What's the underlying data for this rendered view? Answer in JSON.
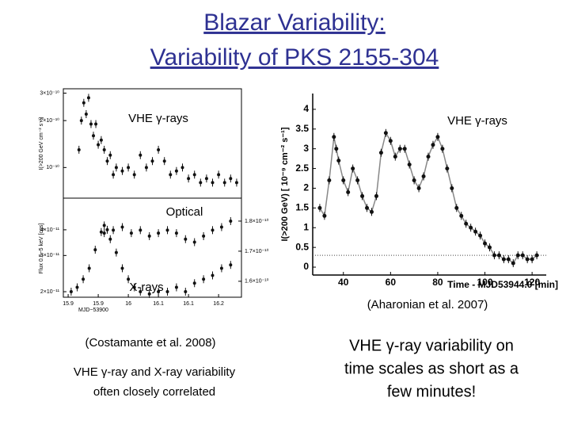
{
  "title_lines": [
    "Blazar Variability:",
    "Variability of PKS 2155-304"
  ],
  "chart_data": [
    {
      "type": "scatter",
      "ylog": true,
      "ylabel": "I(>200 GeV cm⁻² s⁻¹)",
      "xlim": [
        15.892,
        16.188
      ],
      "ylim": [
        6.36e-11,
        3.2e-10
      ],
      "yticks": [
        {
          "value": 3e-10,
          "label": "3×10⁻¹⁰"
        },
        {
          "value": 2e-10,
          "label": "2×10⁻¹⁰"
        },
        {
          "value": 1e-10,
          "label": "10⁻¹⁰"
        }
      ],
      "series": [
        {
          "name": "VHE γ-rays",
          "color": "#111111",
          "x": [
            15.918,
            15.922,
            15.926,
            15.93,
            15.934,
            15.938,
            15.942,
            15.946,
            15.95,
            15.955,
            15.96,
            15.965,
            15.97,
            15.975,
            15.98,
            15.99,
            16.0,
            16.01,
            16.02,
            16.03,
            16.04,
            16.05,
            16.06,
            16.07,
            16.08,
            16.09,
            16.1,
            16.11,
            16.12,
            16.13,
            16.14,
            16.15,
            16.16,
            16.17,
            16.18
          ],
          "values": [
            1.3e-10,
            2e-10,
            2.6e-10,
            2.2e-10,
            2.8e-10,
            1.9e-10,
            1.6e-10,
            1.9e-10,
            1.4e-10,
            1.5e-10,
            1.3e-10,
            1.1e-10,
            1.2e-10,
            9e-11,
            1e-10,
            9.5e-11,
            1e-10,
            9e-11,
            1.2e-10,
            1e-10,
            1.1e-10,
            1.3e-10,
            1.1e-10,
            9e-11,
            9.5e-11,
            1e-10,
            8.5e-11,
            9e-11,
            8e-11,
            8.5e-11,
            8e-11,
            9e-11,
            8e-11,
            8.5e-11,
            8e-11
          ]
        }
      ]
    },
    {
      "type": "scatter",
      "ylog": true,
      "ylabel": "Flux 0.5−5 keV [cgs]",
      "xlabel": "MJD−53900",
      "xlim": [
        15.892,
        16.188
      ],
      "xticks": [
        15.9,
        {
          "value": 15.95,
          "label": "15.9"
        },
        16,
        {
          "value": 16.05,
          "label": "16.1"
        },
        16.1,
        {
          "value": 16.15,
          "label": "16.2"
        }
      ],
      "ylim": [
        1.88e-11,
        5.6e-11
      ],
      "yticks": [
        {
          "value": 4e-11,
          "label": "4×10⁻¹¹"
        },
        {
          "value": 3e-11,
          "label": "3×10⁻¹¹"
        },
        {
          "value": 2e-11,
          "label": "2×10⁻¹¹"
        }
      ],
      "y2lim": [
        1.547e-10,
        1.871e-10
      ],
      "y2ticks": [
        {
          "value": 1.8e-10,
          "label": "1.8×10⁻¹⁰"
        },
        {
          "value": 1.7e-10,
          "label": "1.7×10⁻¹⁰"
        },
        {
          "value": 1.6e-10,
          "label": "1.6×10⁻¹⁰"
        }
      ],
      "series": [
        {
          "name": "Optical",
          "color": "#111111",
          "axis": "y2",
          "x": [
            15.96,
            15.975,
            15.99,
            16.005,
            16.02,
            16.035,
            16.05,
            16.065,
            16.08,
            16.095,
            16.11,
            16.125,
            16.14,
            16.155,
            16.17
          ],
          "values": [
            1.76e-10,
            1.77e-10,
            1.78e-10,
            1.76e-10,
            1.77e-10,
            1.75e-10,
            1.76e-10,
            1.77e-10,
            1.76e-10,
            1.74e-10,
            1.73e-10,
            1.75e-10,
            1.77e-10,
            1.78e-10,
            1.8e-10
          ]
        },
        {
          "name": "X-rays",
          "color": "#111111",
          "x": [
            15.905,
            15.915,
            15.925,
            15.935,
            15.945,
            15.955,
            15.96,
            15.965,
            15.97,
            15.98,
            15.99,
            16.0,
            16.01,
            16.02,
            16.035,
            16.05,
            16.065,
            16.08,
            16.095,
            16.11,
            16.125,
            16.14,
            16.155,
            16.17
          ],
          "values": [
            2e-11,
            2.1e-11,
            2.3e-11,
            2.6e-11,
            3.2e-11,
            3.9e-11,
            4.2e-11,
            4e-11,
            3.6e-11,
            3.1e-11,
            2.6e-11,
            2.3e-11,
            2.1e-11,
            2e-11,
            1.95e-11,
            2e-11,
            2e-11,
            2.1e-11,
            2e-11,
            2.2e-11,
            2.3e-11,
            2.4e-11,
            2.6e-11,
            2.7e-11
          ]
        }
      ]
    },
    {
      "type": "line",
      "ylabel": "I(>200 GeV) [ 10⁻⁹ cm⁻² s⁻¹]",
      "xlabel": "Time - MJD53944.0 [min]",
      "xlim": [
        27,
        126
      ],
      "xticks": [
        40,
        60,
        80,
        100,
        120
      ],
      "ylim": [
        -0.2,
        4.4
      ],
      "yticks": [
        0,
        0.5,
        1,
        1.5,
        2,
        2.5,
        3,
        3.5,
        4
      ],
      "reference_y": 0.3,
      "series": [
        {
          "name": "VHE γ-rays",
          "color": "#111111",
          "x": [
            30,
            32,
            34,
            36,
            37,
            38,
            40,
            42,
            44,
            46,
            48,
            50,
            52,
            54,
            56,
            58,
            60,
            62,
            64,
            66,
            68,
            70,
            72,
            74,
            76,
            78,
            80,
            82,
            84,
            86,
            88,
            90,
            92,
            94,
            96,
            98,
            100,
            102,
            104,
            106,
            108,
            110,
            112,
            114,
            116,
            118,
            120,
            122
          ],
          "values": [
            1.5,
            1.3,
            2.2,
            3.3,
            3.0,
            2.7,
            2.2,
            1.9,
            2.5,
            2.2,
            1.8,
            1.5,
            1.4,
            1.8,
            2.9,
            3.4,
            3.2,
            2.8,
            3.0,
            3.0,
            2.6,
            2.2,
            2.0,
            2.3,
            2.8,
            3.1,
            3.3,
            3.0,
            2.5,
            2.0,
            1.5,
            1.3,
            1.1,
            1.0,
            0.9,
            0.8,
            0.6,
            0.5,
            0.3,
            0.3,
            0.2,
            0.2,
            0.1,
            0.3,
            0.3,
            0.2,
            0.2,
            0.3
          ]
        }
      ]
    }
  ],
  "captions": {
    "left_ref": "(Costamante et al. 2008)",
    "left_note": [
      "VHE γ-ray and X-ray variability",
      "often closely correlated"
    ],
    "right_ref": "(Aharonian et al. 2007)",
    "right_note": [
      "VHE γ-ray variability on",
      "time scales as short as a",
      "few minutes!"
    ]
  }
}
